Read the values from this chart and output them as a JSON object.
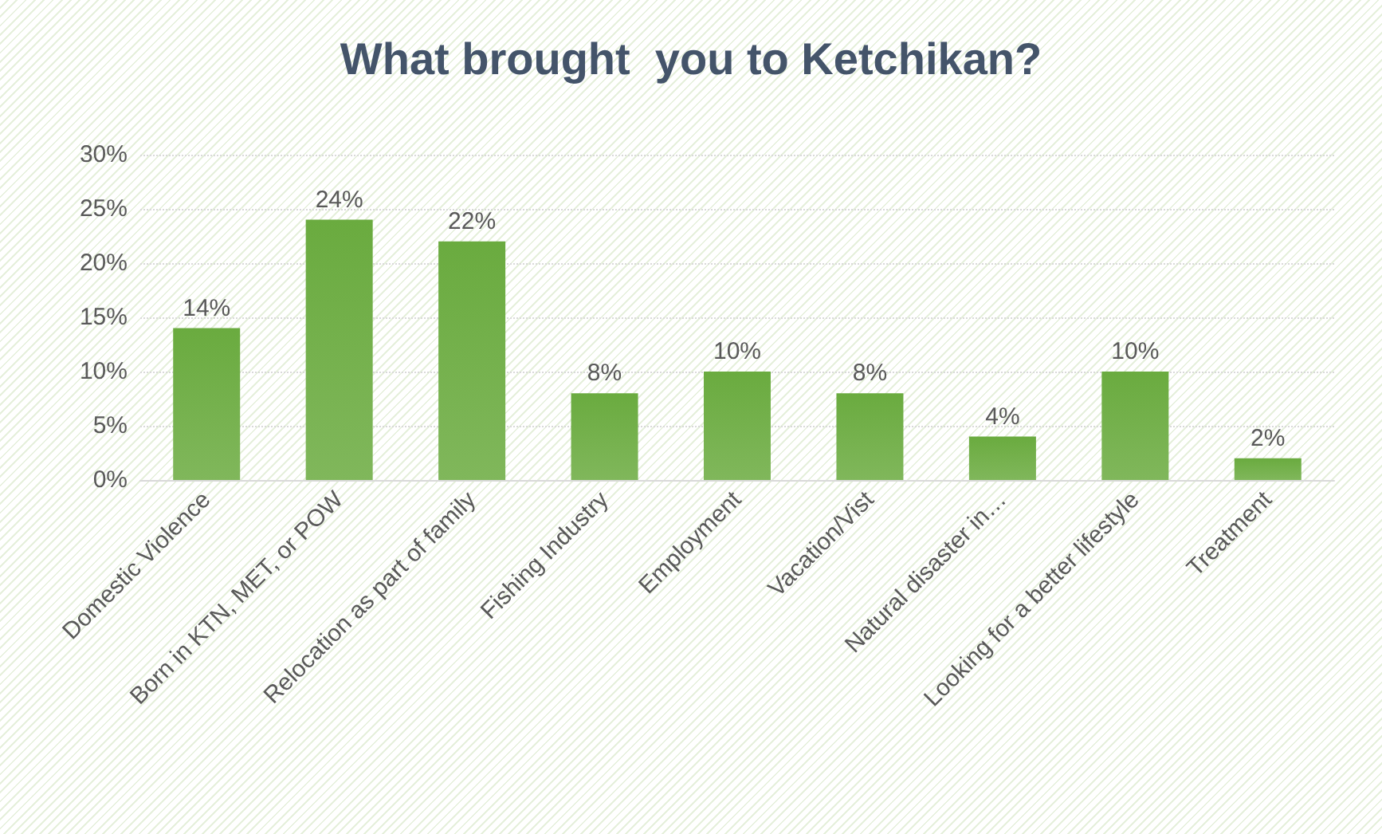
{
  "chart_data": {
    "type": "bar",
    "title": "What brought  you to Ketchikan?",
    "categories": [
      "Domestic Violence",
      "Born in KTN, MET, or POW",
      "Relocation as part of family",
      "Fishing Industry",
      "Employment",
      "Vacation/Vist",
      "Natural disaster in…",
      "Looking for a better lifestyle",
      "Treatment"
    ],
    "values": [
      14,
      24,
      22,
      8,
      10,
      8,
      4,
      10,
      2
    ],
    "value_labels": [
      "14%",
      "24%",
      "22%",
      "8%",
      "10%",
      "8%",
      "4%",
      "10%",
      "2%"
    ],
    "color": "#6aab3f",
    "ylim": [
      0,
      30
    ],
    "yticks": [
      {
        "value": 0,
        "label": "0%"
      },
      {
        "value": 5,
        "label": "5%"
      },
      {
        "value": 10,
        "label": "10%"
      },
      {
        "value": 15,
        "label": "15%"
      },
      {
        "value": 20,
        "label": "20%"
      },
      {
        "value": 25,
        "label": "25%"
      },
      {
        "value": 30,
        "label": "30%"
      }
    ],
    "grid": "y"
  }
}
